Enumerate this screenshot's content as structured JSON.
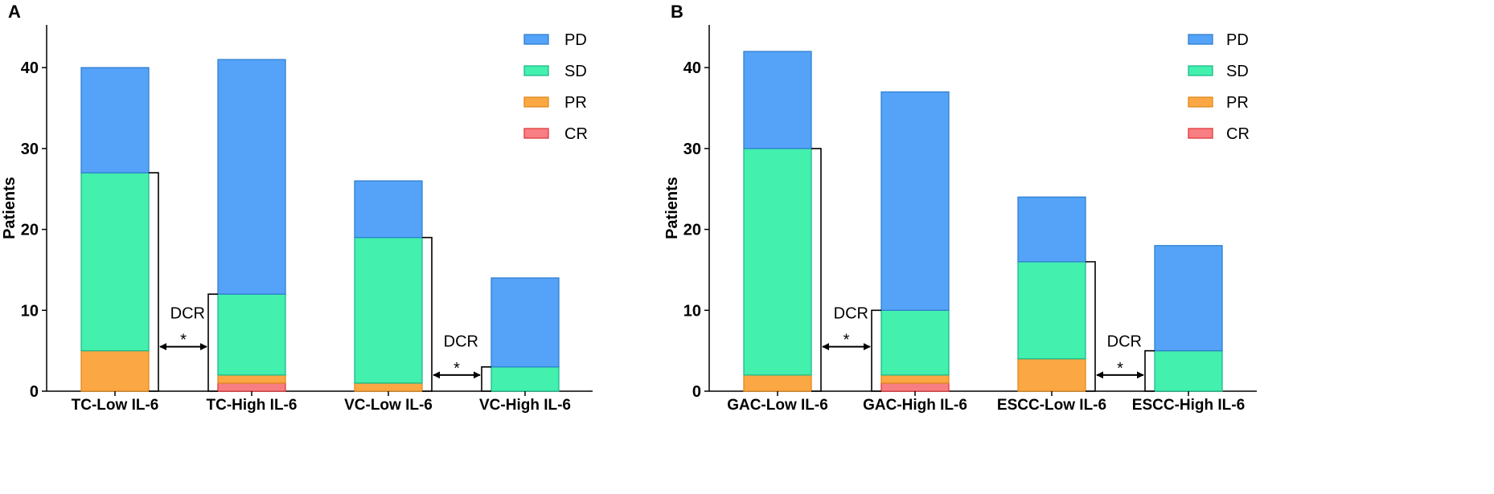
{
  "colors": {
    "PD": "#55a3f8",
    "PD_border": "#2f7fd0",
    "SD": "#43f0ae",
    "SD_border": "#1fb98a",
    "PR": "#fba744",
    "PR_border": "#e08a20",
    "CR": "#f77f84",
    "CR_border": "#e03a3a",
    "axis": "#000000"
  },
  "chart_data": [
    {
      "type": "bar",
      "stacked": true,
      "panel_label": "A",
      "title": "",
      "xlabel": "",
      "ylabel": "Patients",
      "ylim": [
        0,
        45
      ],
      "yticks": [
        0,
        10,
        20,
        30,
        40
      ],
      "ytick_labels": [
        "0",
        "10",
        "20",
        "30",
        "40"
      ],
      "grid": false,
      "legend_position": "top-right",
      "legend": [
        "PD",
        "SD",
        "PR",
        "CR"
      ],
      "categories": [
        "TC-Low IL-6",
        "TC-High IL-6",
        "VC-Low IL-6",
        "VC-High IL-6"
      ],
      "series": [
        {
          "name": "CR",
          "values": [
            0,
            1,
            0,
            0
          ]
        },
        {
          "name": "PR",
          "values": [
            5,
            1,
            1,
            0
          ]
        },
        {
          "name": "SD",
          "values": [
            22,
            10,
            18,
            3
          ]
        },
        {
          "name": "PD",
          "values": [
            13,
            29,
            7,
            11
          ]
        }
      ],
      "totals": [
        40,
        41,
        26,
        14
      ],
      "comparisons": [
        {
          "from": 0,
          "to": 1,
          "dcr": [
            27,
            12
          ],
          "label": "DCR",
          "significance": "*"
        },
        {
          "from": 2,
          "to": 3,
          "dcr": [
            19,
            3
          ],
          "label": "DCR",
          "significance": "*"
        }
      ]
    },
    {
      "type": "bar",
      "stacked": true,
      "panel_label": "B",
      "title": "",
      "xlabel": "",
      "ylabel": "Patients",
      "ylim": [
        0,
        45
      ],
      "yticks": [
        0,
        10,
        20,
        30,
        40
      ],
      "ytick_labels": [
        "0",
        "10",
        "20",
        "30",
        "40"
      ],
      "grid": false,
      "legend_position": "top-right",
      "legend": [
        "PD",
        "SD",
        "PR",
        "CR"
      ],
      "categories": [
        "GAC-Low IL-6",
        "GAC-High IL-6",
        "ESCC-Low IL-6",
        "ESCC-High IL-6"
      ],
      "series": [
        {
          "name": "CR",
          "values": [
            0,
            1,
            0,
            0
          ]
        },
        {
          "name": "PR",
          "values": [
            2,
            1,
            4,
            0
          ]
        },
        {
          "name": "SD",
          "values": [
            28,
            8,
            12,
            5
          ]
        },
        {
          "name": "PD",
          "values": [
            12,
            27,
            8,
            13
          ]
        }
      ],
      "totals": [
        42,
        37,
        24,
        18
      ],
      "comparisons": [
        {
          "from": 0,
          "to": 1,
          "dcr": [
            30,
            10
          ],
          "label": "DCR",
          "significance": "*"
        },
        {
          "from": 2,
          "to": 3,
          "dcr": [
            16,
            5
          ],
          "label": "DCR",
          "significance": "*"
        }
      ]
    }
  ]
}
